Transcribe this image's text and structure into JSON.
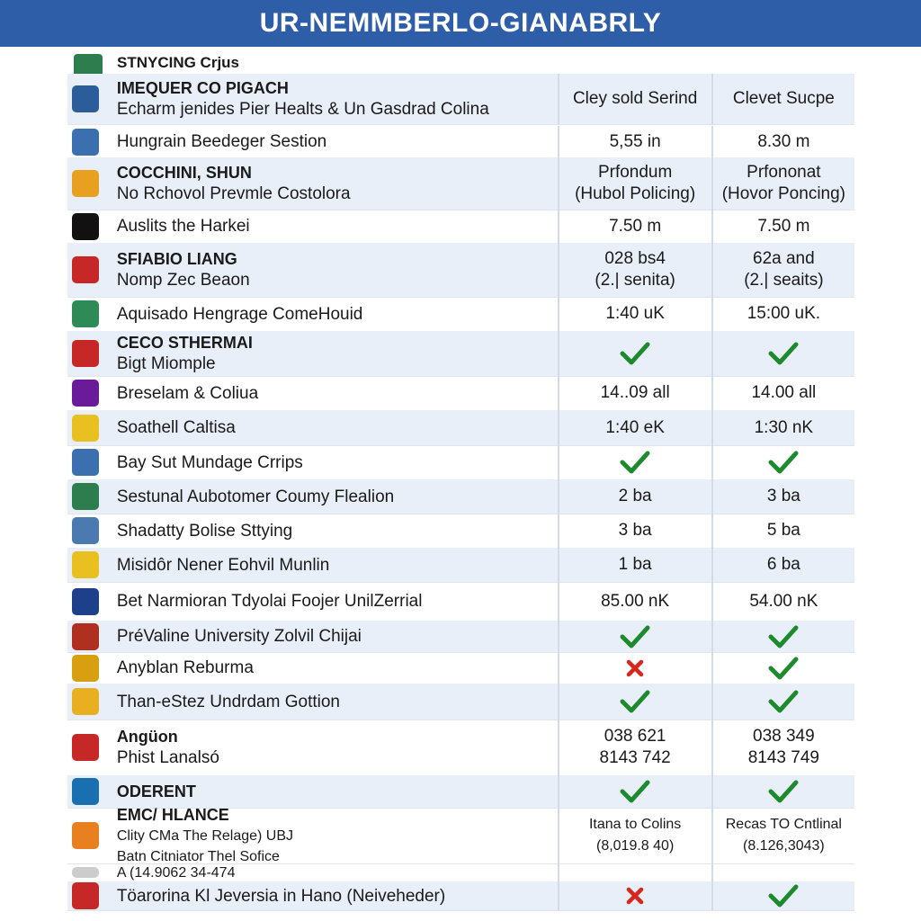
{
  "header": {
    "title": "UR-NEMMBERLO-GIANABRLY"
  },
  "table": {
    "caption": "STNYCING Crjus",
    "head": {
      "name": [
        "IMEQUER CO PIGACH",
        "Echarm jenides Pier Healts & Un Gasdrad Colina"
      ],
      "columns": [
        "Cley sold Serind",
        "Clevet Sucpe"
      ]
    },
    "rows": [
      {
        "name": [
          "Hungrain Beedeger Sestion"
        ],
        "cells": [
          [
            "5,55 in"
          ],
          [
            "8.30 m"
          ]
        ]
      },
      {
        "name": [
          "COCCHINI, SHUN",
          "No Rchovol Prevmle Costolora"
        ],
        "cells": [
          [
            "Prfondum",
            "(Hubol Policing)"
          ],
          [
            "Prfononat",
            "(Hovor Poncing)"
          ]
        ]
      },
      {
        "name": [
          "Auslits the Harkei"
        ],
        "cells": [
          [
            "7.50 m"
          ],
          [
            "7.50 m"
          ]
        ]
      },
      {
        "name": [
          "SFIABIO LIANG",
          "Nomp Zec Beaon"
        ],
        "cells": [
          [
            "028 bs4",
            "(2.| senita)"
          ],
          [
            "62a and",
            "(2.| seaits)"
          ]
        ]
      },
      {
        "name": [
          "Aquisado Hengrage ComeHouid"
        ],
        "cells": [
          [
            "1:40 uK"
          ],
          [
            "15:00 uK."
          ]
        ]
      },
      {
        "name": [
          "CECO STHERMAI",
          "Bigt Miomple"
        ]
      },
      {
        "name": [
          "Breselam & Coliua"
        ],
        "cells": [
          [
            "14..09 all"
          ],
          [
            "14.00 all"
          ]
        ]
      },
      {
        "name": [
          "Soathell Caltisa"
        ],
        "cells": [
          [
            "1:40 eK"
          ],
          [
            "1:30 nK"
          ]
        ]
      },
      {
        "name": [
          "Bay Sut Mundage Crrips"
        ]
      },
      {
        "name": [
          "Sestunal Aubotomer Coumy Flealion"
        ],
        "cells": [
          [
            "2 ba"
          ],
          [
            "3 ba"
          ]
        ]
      },
      {
        "name": [
          "Shadatty Bolise Sttying"
        ],
        "cells": [
          [
            "3 ba"
          ],
          [
            "5 ba"
          ]
        ]
      },
      {
        "name": [
          "Misidôr Nener Eohvil Munlin"
        ],
        "cells": [
          [
            "1 ba"
          ],
          [
            "6 ba"
          ]
        ]
      },
      {
        "name": [
          "Bet Narmioran Tdyolai Foojer UnilZerrial"
        ],
        "cells": [
          [
            "85.00 nK"
          ],
          [
            "54.00 nK"
          ]
        ]
      },
      {
        "name": [
          "PréValine University Zolvil Chijai"
        ]
      },
      {
        "name": [
          "Anyblan Reburma"
        ]
      },
      {
        "name": [
          "Than-eStez Undrdam Gottion"
        ]
      },
      {
        "name": [
          "Angüon",
          "Phist Lanalsó"
        ],
        "cells": [
          [
            "038 621",
            "8143 742"
          ],
          [
            "038 349",
            "8143 749"
          ]
        ]
      },
      {
        "name": [
          "ODERENT"
        ]
      },
      {
        "name": [
          "EMC/ HLANCE",
          "Clity CMa The Relage) UBJ",
          "Batn Citniator Thel Sofice"
        ],
        "cells": [
          [
            "Itana to Colins",
            "(8,019.8 40)"
          ],
          [
            "Recas TO Cntlinal",
            "(8.126,3043)"
          ]
        ]
      },
      {
        "name": [
          "A (14.9062 34-474"
        ]
      },
      {
        "name": [
          "Töarorina Kl Jeversia in Hano (Neiveheder)"
        ]
      }
    ]
  }
}
